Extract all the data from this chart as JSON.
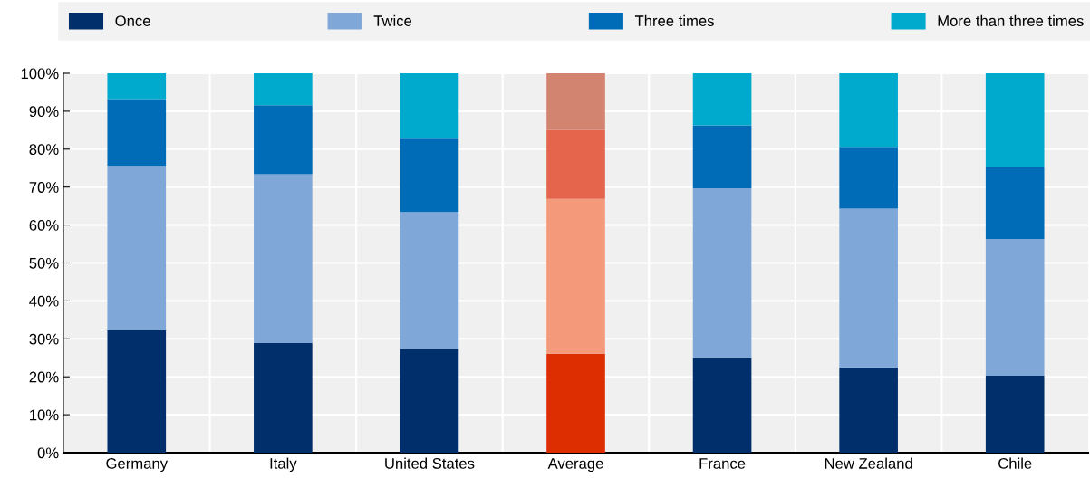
{
  "chart_data": {
    "type": "bar",
    "stacked": true,
    "categories": [
      "Germany",
      "Italy",
      "United States",
      "Average",
      "France",
      "New Zealand",
      "Chile"
    ],
    "series": [
      {
        "name": "Once",
        "color": "#002f6c",
        "colors": [
          "#002f6c",
          "#002f6c",
          "#002f6c",
          "#dc2e00",
          "#002f6c",
          "#002f6c",
          "#002f6c"
        ],
        "values": [
          32.2,
          28.9,
          27.4,
          26.1,
          24.9,
          22.5,
          20.3
        ]
      },
      {
        "name": "Twice",
        "color": "#7fa8d9",
        "colors": [
          "#7fa8d9",
          "#7fa8d9",
          "#7fa8d9",
          "#f5997b",
          "#7fa8d9",
          "#7fa8d9",
          "#7fa8d9"
        ],
        "values": [
          43.4,
          44.5,
          36.0,
          40.8,
          44.8,
          41.8,
          36.0
        ]
      },
      {
        "name": "Three times",
        "color": "#006bb6",
        "colors": [
          "#006bb6",
          "#006bb6",
          "#006bb6",
          "#e4654c",
          "#006bb6",
          "#006bb6",
          "#006bb6"
        ],
        "values": [
          17.6,
          18.2,
          19.6,
          18.2,
          16.6,
          16.3,
          18.9
        ]
      },
      {
        "name": "More than three times",
        "color": "#00aacc",
        "colors": [
          "#00aacc",
          "#00aacc",
          "#00aacc",
          "#d38471",
          "#00aacc",
          "#00aacc",
          "#00aacc"
        ],
        "values": [
          6.8,
          8.4,
          17.0,
          14.9,
          13.7,
          19.4,
          24.8
        ]
      }
    ],
    "ylim": [
      0,
      100
    ],
    "yticks": [
      {
        "value": 0,
        "label": "0%"
      },
      {
        "value": 10,
        "label": "10%"
      },
      {
        "value": 20,
        "label": "20%"
      },
      {
        "value": 30,
        "label": "30%"
      },
      {
        "value": 40,
        "label": "40%"
      },
      {
        "value": 50,
        "label": "50%"
      },
      {
        "value": 60,
        "label": "60%"
      },
      {
        "value": 70,
        "label": "70%"
      },
      {
        "value": 80,
        "label": "80%"
      },
      {
        "value": 90,
        "label": "90%"
      },
      {
        "value": 100,
        "label": "100%"
      }
    ],
    "grid": true,
    "legend": "top"
  }
}
